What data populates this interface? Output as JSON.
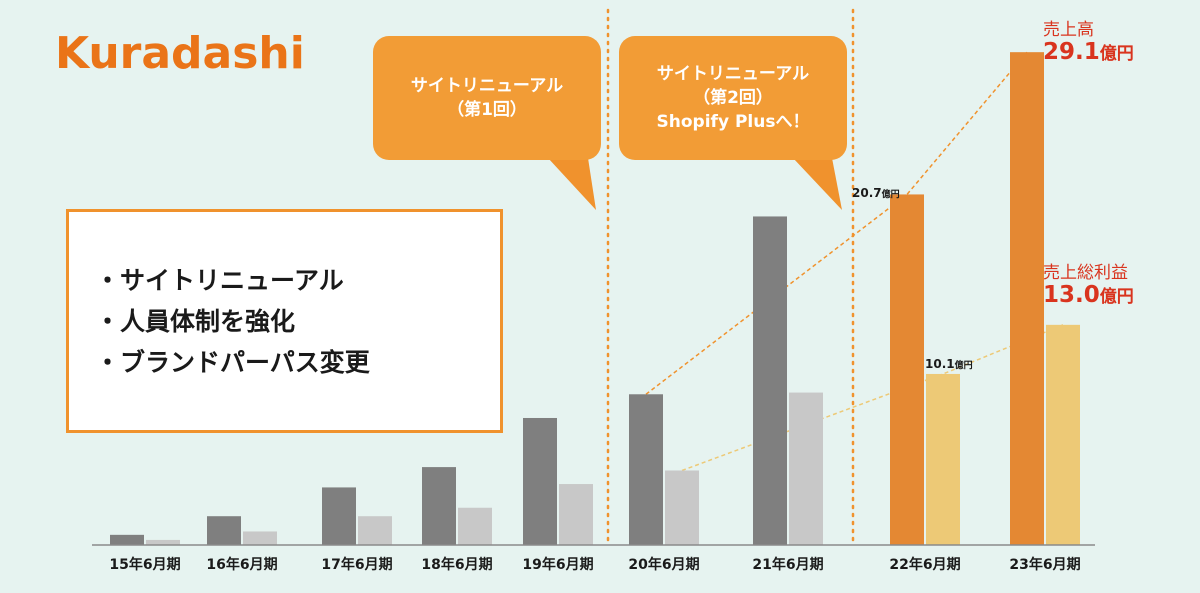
{
  "logo": {
    "text": "Kuradashi"
  },
  "bubbles": [
    {
      "lines": [
        "サイトリニューアル",
        "（第1回）"
      ]
    },
    {
      "lines": [
        "サイトリニューアル",
        "（第2回）",
        "Shopify Plusへ！"
      ]
    }
  ],
  "points": [
    "・サイトリニューアル",
    "・人員体制を強化",
    "・ブランドパーパス変更"
  ],
  "annotations": {
    "sales": {
      "label": "売上高",
      "value": "29.1",
      "unit": "億円"
    },
    "gross_profit": {
      "label": "売上総利益",
      "value": "13.0",
      "unit": "億円"
    },
    "fy22_sales": {
      "value": "20.7",
      "unit": "億円"
    },
    "fy22_profit": {
      "value": "10.1",
      "unit": "億円"
    }
  },
  "colors": {
    "sales_past": "#7f7f7f",
    "profit_past": "#c8c8c8",
    "sales_recent": "#e48833",
    "profit_recent": "#edc976",
    "accent": "#f0922d",
    "annotation_red": "#d9341e"
  },
  "chart_data": {
    "type": "bar",
    "categories": [
      "15年6月期",
      "16年6月期",
      "17年6月期",
      "18年6月期",
      "19年6月期",
      "20年6月期",
      "21年6月期",
      "22年6月期",
      "23年6月期"
    ],
    "series": [
      {
        "name": "売上高",
        "values": [
          0.6,
          1.7,
          3.4,
          4.6,
          7.5,
          8.9,
          19.4,
          20.7,
          29.1
        ]
      },
      {
        "name": "売上総利益",
        "values": [
          0.3,
          0.8,
          1.7,
          2.2,
          3.6,
          4.4,
          9.0,
          10.1,
          13.0
        ]
      }
    ],
    "ylim": [
      0,
      31
    ],
    "grid": false,
    "highlighted_categories": [
      "22年6月期",
      "23年6月期"
    ],
    "event_markers": [
      "20年6月期",
      "22年6月期"
    ]
  }
}
